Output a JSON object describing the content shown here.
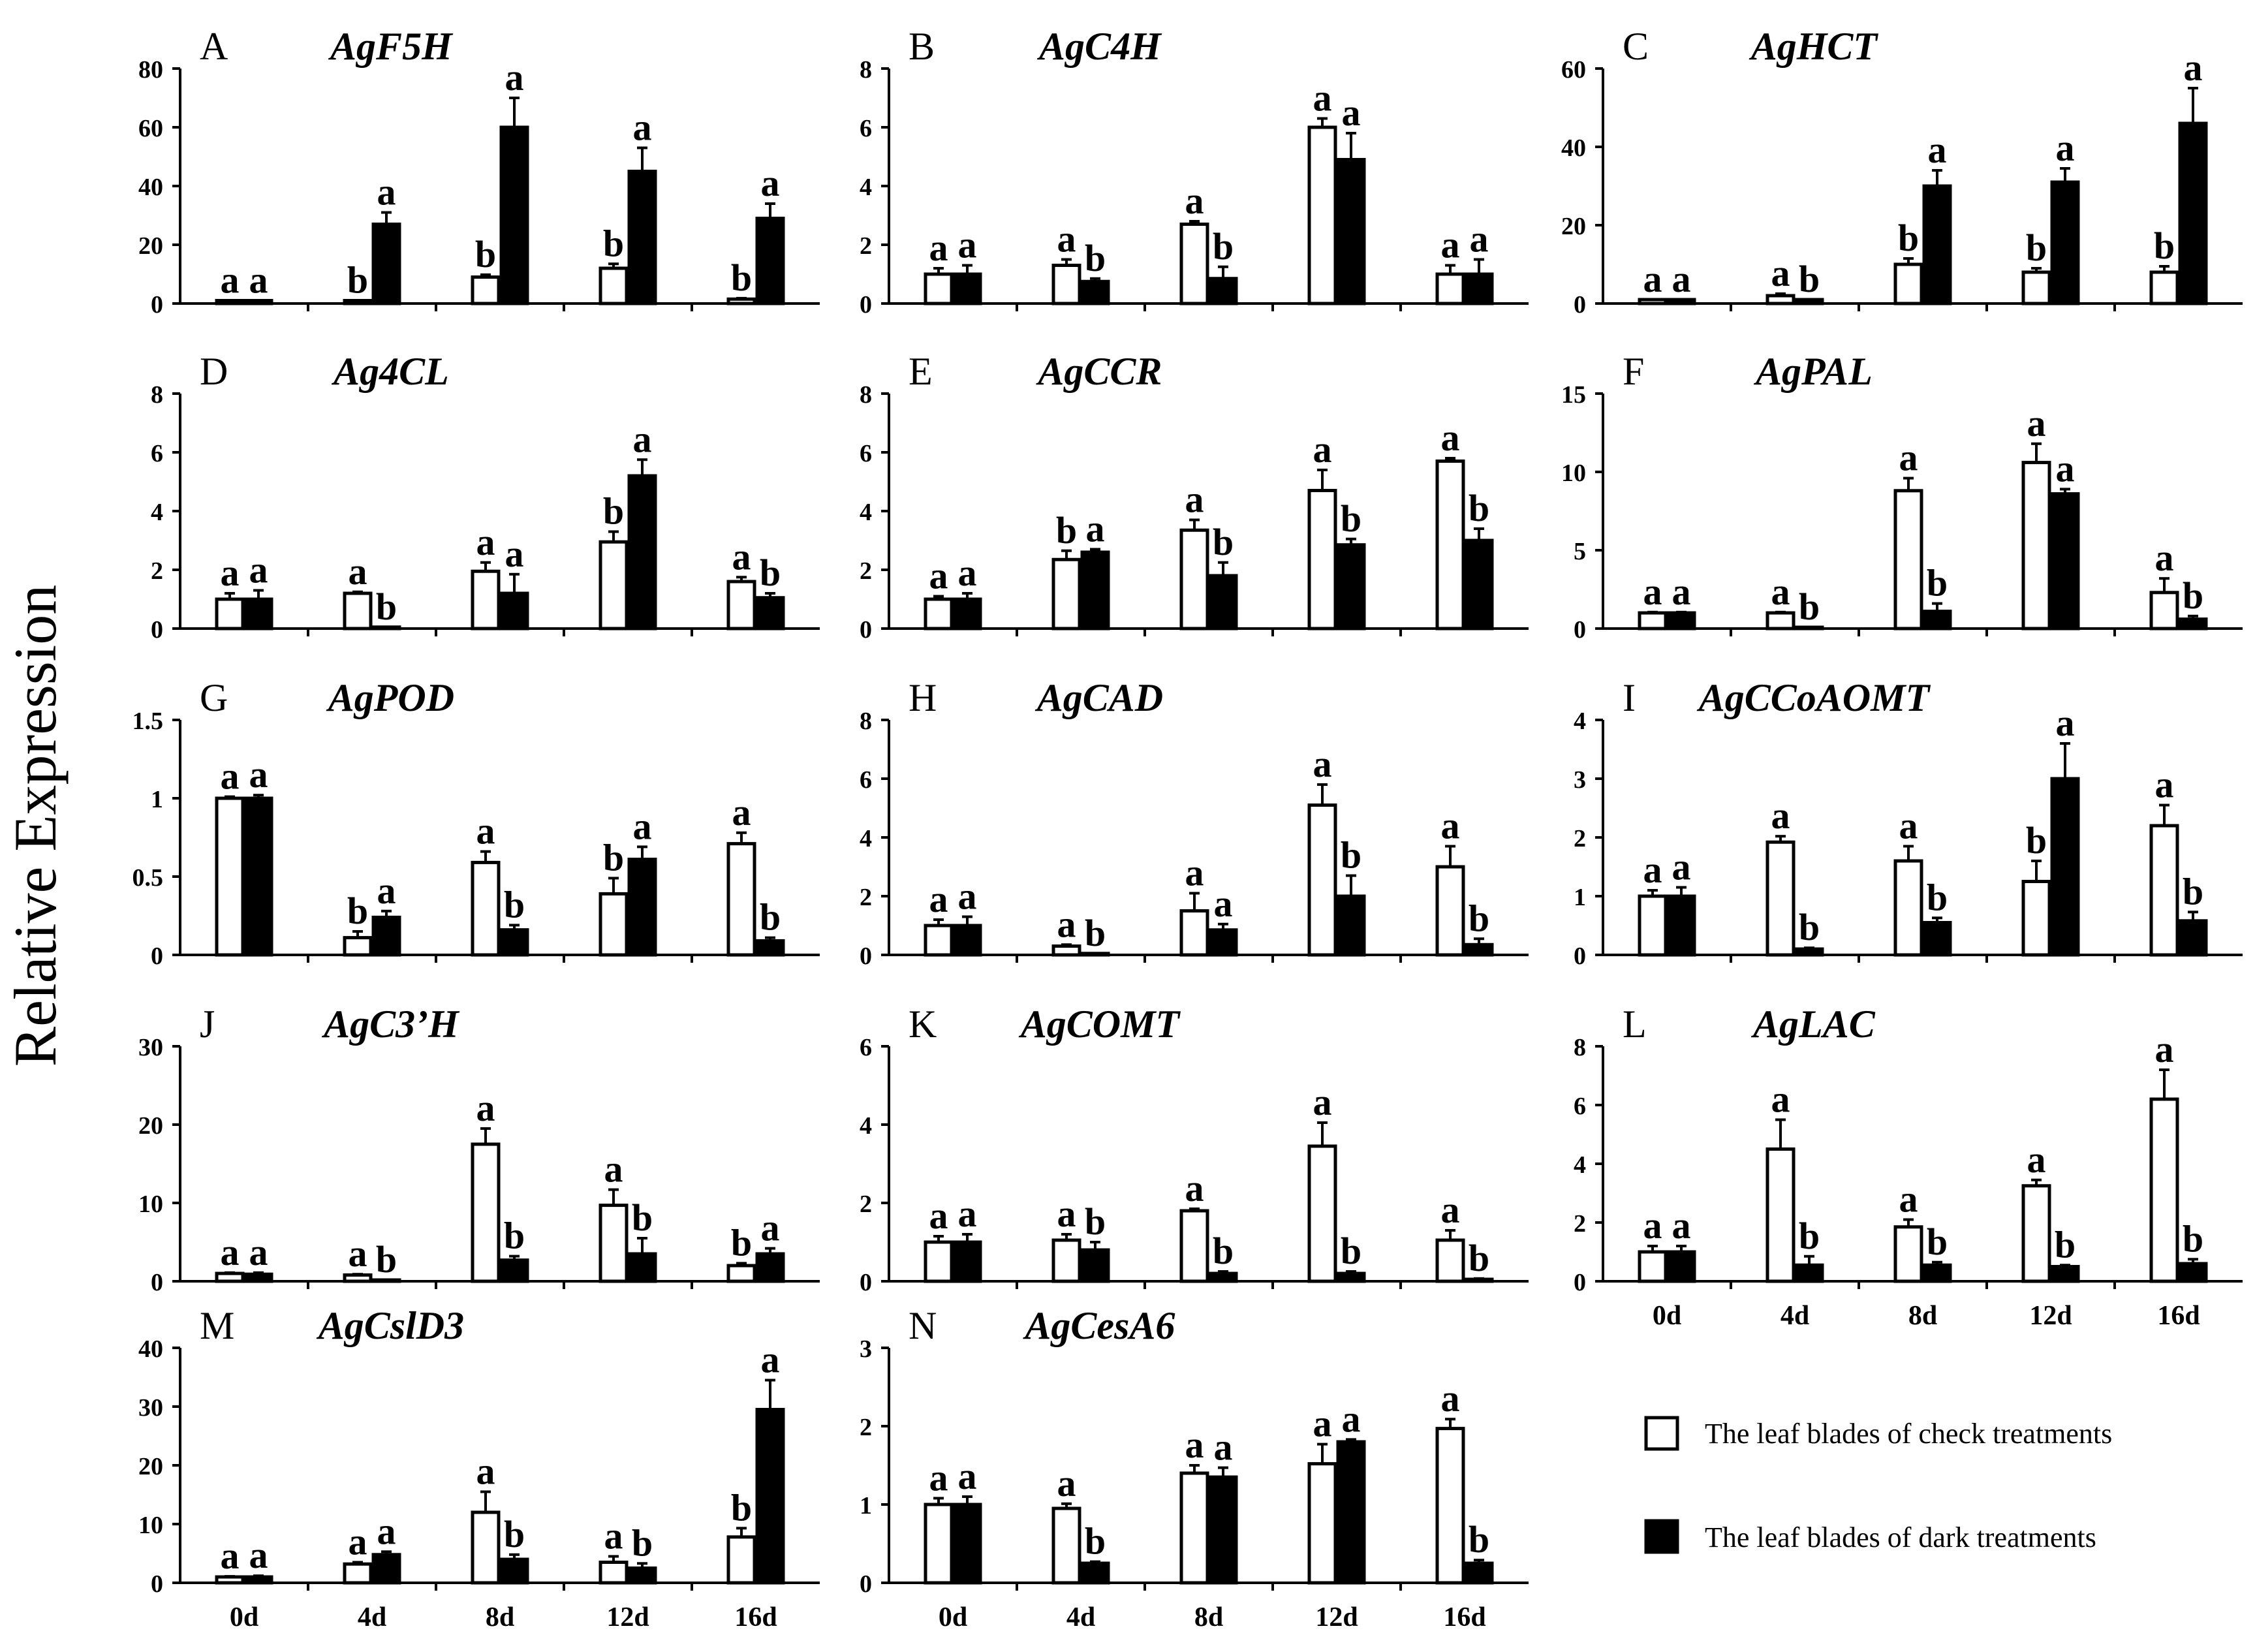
{
  "figure": {
    "ylabel": "Relative Expression",
    "categories": [
      "0d",
      "4d",
      "8d",
      "12d",
      "16d"
    ],
    "legend": {
      "check": "The leaf blades of check treatments",
      "dark": "The leaf blades of dark treatments"
    },
    "colors": {
      "check": "#ffffff",
      "dark": "#000000",
      "stroke": "#000000"
    }
  },
  "chart_data": [
    {
      "type": "bar",
      "panel": "A",
      "title": "AgF5H",
      "ylim": [
        0,
        80
      ],
      "ticks": [
        "0",
        "20",
        "40",
        "60",
        "80"
      ],
      "categories": [
        "0d",
        "4d",
        "8d",
        "12d",
        "16d"
      ],
      "series": [
        {
          "name": "The leaf blades of check treatments",
          "values": [
            1,
            1,
            9,
            12,
            1.5
          ],
          "errors": [
            0,
            0,
            0.8,
            1.5,
            0.3
          ],
          "letters": [
            "a",
            "b",
            "b",
            "b",
            "b"
          ]
        },
        {
          "name": "The leaf blades of dark treatments",
          "values": [
            1,
            27,
            60,
            45,
            29
          ],
          "errors": [
            0,
            4,
            10,
            8,
            5
          ],
          "letters": [
            "a",
            "a",
            "a",
            "a",
            "a"
          ]
        }
      ]
    },
    {
      "type": "bar",
      "panel": "B",
      "title": "AgC4H",
      "ylim": [
        0,
        8
      ],
      "ticks": [
        "0",
        "2",
        "4",
        "6",
        "8"
      ],
      "categories": [
        "0d",
        "4d",
        "8d",
        "12d",
        "16d"
      ],
      "series": [
        {
          "name": "The leaf blades of check treatments",
          "values": [
            1,
            1.3,
            2.7,
            6,
            1
          ],
          "errors": [
            0.2,
            0.2,
            0.1,
            0.3,
            0.3
          ],
          "letters": [
            "a",
            "a",
            "a",
            "a",
            "a"
          ]
        },
        {
          "name": "The leaf blades of dark treatments",
          "values": [
            1,
            0.75,
            0.85,
            4.9,
            1
          ],
          "errors": [
            0.3,
            0.1,
            0.4,
            0.9,
            0.5
          ],
          "letters": [
            "a",
            "b",
            "b",
            "a",
            "a"
          ]
        }
      ]
    },
    {
      "type": "bar",
      "panel": "C",
      "title": "AgHCT",
      "ylim": [
        0,
        60
      ],
      "ticks": [
        "0",
        "20",
        "40",
        "60"
      ],
      "categories": [
        "0d",
        "4d",
        "8d",
        "12d",
        "16d"
      ],
      "series": [
        {
          "name": "The leaf blades of check treatments",
          "values": [
            1,
            2,
            10,
            8,
            8
          ],
          "errors": [
            0,
            0.5,
            1.5,
            1,
            1.5
          ],
          "letters": [
            "a",
            "a",
            "b",
            "b",
            "b"
          ]
        },
        {
          "name": "The leaf blades of dark treatments",
          "values": [
            1,
            1,
            30,
            31,
            46
          ],
          "errors": [
            0,
            0,
            4,
            3.5,
            9
          ],
          "letters": [
            "a",
            "b",
            "a",
            "a",
            "a"
          ]
        }
      ]
    },
    {
      "type": "bar",
      "panel": "D",
      "title": "Ag4CL",
      "ylim": [
        0,
        8
      ],
      "ticks": [
        "0",
        "2",
        "4",
        "6",
        "8"
      ],
      "categories": [
        "0d",
        "4d",
        "8d",
        "12d",
        "16d"
      ],
      "series": [
        {
          "name": "The leaf blades of check treatments",
          "values": [
            1,
            1.2,
            1.95,
            2.95,
            1.6
          ],
          "errors": [
            0.2,
            0.05,
            0.3,
            0.35,
            0.15
          ],
          "letters": [
            "a",
            "a",
            "a",
            "b",
            "a"
          ]
        },
        {
          "name": "The leaf blades of dark treatments",
          "values": [
            1,
            0.05,
            1.2,
            5.2,
            1.05
          ],
          "errors": [
            0.3,
            0,
            0.65,
            0.55,
            0.15
          ],
          "letters": [
            "a",
            "b",
            "a",
            "a",
            "b"
          ]
        }
      ]
    },
    {
      "type": "bar",
      "panel": "E",
      "title": "AgCCR",
      "ylim": [
        0,
        8
      ],
      "ticks": [
        "0",
        "2",
        "4",
        "6",
        "8"
      ],
      "categories": [
        "0d",
        "4d",
        "8d",
        "12d",
        "16d"
      ],
      "series": [
        {
          "name": "The leaf blades of check treatments",
          "values": [
            1,
            2.35,
            3.35,
            4.7,
            5.7
          ],
          "errors": [
            0.1,
            0.3,
            0.35,
            0.7,
            0.1
          ],
          "letters": [
            "a",
            "b",
            "a",
            "a",
            "a"
          ]
        },
        {
          "name": "The leaf blades of dark treatments",
          "values": [
            1,
            2.6,
            1.8,
            2.85,
            3
          ],
          "errors": [
            0.2,
            0.1,
            0.45,
            0.2,
            0.4
          ],
          "letters": [
            "a",
            "a",
            "b",
            "b",
            "b"
          ]
        }
      ]
    },
    {
      "type": "bar",
      "panel": "F",
      "title": "AgPAL",
      "ylim": [
        0,
        15
      ],
      "ticks": [
        "0",
        "5",
        "10",
        "15"
      ],
      "categories": [
        "0d",
        "4d",
        "8d",
        "12d",
        "16d"
      ],
      "series": [
        {
          "name": "The leaf blades of check treatments",
          "values": [
            1,
            1,
            8.8,
            10.6,
            2.3
          ],
          "errors": [
            0.05,
            0.05,
            0.8,
            1.2,
            0.9
          ],
          "letters": [
            "a",
            "a",
            "a",
            "a",
            "a"
          ]
        },
        {
          "name": "The leaf blades of dark treatments",
          "values": [
            1,
            0.05,
            1.1,
            8.6,
            0.6
          ],
          "errors": [
            0.05,
            0,
            0.5,
            0.3,
            0.2
          ],
          "letters": [
            "a",
            "b",
            "b",
            "a",
            "b"
          ]
        }
      ]
    },
    {
      "type": "bar",
      "panel": "G",
      "title": "AgPOD",
      "ylim": [
        0,
        1.5
      ],
      "ticks": [
        "0",
        "0.5",
        "1",
        "1.5"
      ],
      "categories": [
        "0d",
        "4d",
        "8d",
        "12d",
        "16d"
      ],
      "series": [
        {
          "name": "The leaf blades of check treatments",
          "values": [
            1,
            0.11,
            0.59,
            0.39,
            0.71
          ],
          "errors": [
            0.01,
            0.04,
            0.07,
            0.1,
            0.07
          ],
          "letters": [
            "a",
            "b",
            "a",
            "b",
            "a"
          ]
        },
        {
          "name": "The leaf blades of dark treatments",
          "values": [
            1,
            0.24,
            0.16,
            0.61,
            0.09
          ],
          "errors": [
            0.02,
            0.04,
            0.03,
            0.08,
            0.02
          ],
          "letters": [
            "a",
            "a",
            "b",
            "a",
            "b"
          ]
        }
      ]
    },
    {
      "type": "bar",
      "panel": "H",
      "title": "AgCAD",
      "ylim": [
        0,
        8
      ],
      "ticks": [
        "0",
        "2",
        "4",
        "6",
        "8"
      ],
      "categories": [
        "0d",
        "4d",
        "8d",
        "12d",
        "16d"
      ],
      "series": [
        {
          "name": "The leaf blades of check treatments",
          "values": [
            1,
            0.3,
            1.5,
            5.1,
            3
          ],
          "errors": [
            0.2,
            0.05,
            0.6,
            0.7,
            0.7
          ],
          "letters": [
            "a",
            "a",
            "a",
            "a",
            "a"
          ]
        },
        {
          "name": "The leaf blades of dark treatments",
          "values": [
            1,
            0.05,
            0.85,
            2,
            0.35
          ],
          "errors": [
            0.3,
            0,
            0.2,
            0.7,
            0.2
          ],
          "letters": [
            "a",
            "b",
            "a",
            "b",
            "b"
          ]
        }
      ]
    },
    {
      "type": "bar",
      "panel": "I",
      "title": "AgCCoAOMT",
      "ylim": [
        0,
        4
      ],
      "ticks": [
        "0",
        "1",
        "2",
        "3",
        "4"
      ],
      "categories": [
        "0d",
        "4d",
        "8d",
        "12d",
        "16d"
      ],
      "series": [
        {
          "name": "The leaf blades of check treatments",
          "values": [
            1,
            1.92,
            1.6,
            1.25,
            2.2
          ],
          "errors": [
            0.1,
            0.1,
            0.25,
            0.35,
            0.35
          ],
          "letters": [
            "a",
            "a",
            "a",
            "b",
            "a"
          ]
        },
        {
          "name": "The leaf blades of dark treatments",
          "values": [
            1,
            0.1,
            0.55,
            3,
            0.58
          ],
          "errors": [
            0.15,
            0.02,
            0.08,
            0.6,
            0.15
          ],
          "letters": [
            "a",
            "b",
            "b",
            "a",
            "b"
          ]
        }
      ]
    },
    {
      "type": "bar",
      "panel": "J",
      "title": "AgC3’H",
      "ylim": [
        0,
        30
      ],
      "ticks": [
        "0",
        "10",
        "20",
        "30"
      ],
      "categories": [
        "0d",
        "4d",
        "8d",
        "12d",
        "16d"
      ],
      "series": [
        {
          "name": "The leaf blades of check treatments",
          "values": [
            1,
            0.8,
            17.5,
            9.7,
            2
          ],
          "errors": [
            0.1,
            0.1,
            2,
            2,
            0.3
          ],
          "letters": [
            "a",
            "a",
            "a",
            "a",
            "b"
          ]
        },
        {
          "name": "The leaf blades of dark treatments",
          "values": [
            0.9,
            0.1,
            2.7,
            3.5,
            3.5
          ],
          "errors": [
            0.2,
            0,
            0.5,
            2,
            0.7
          ],
          "letters": [
            "a",
            "b",
            "b",
            "b",
            "a"
          ]
        }
      ]
    },
    {
      "type": "bar",
      "panel": "K",
      "title": "AgCOMT",
      "ylim": [
        0,
        6
      ],
      "ticks": [
        "0",
        "2",
        "4",
        "6"
      ],
      "categories": [
        "0d",
        "4d",
        "8d",
        "12d",
        "16d"
      ],
      "series": [
        {
          "name": "The leaf blades of check treatments",
          "values": [
            1,
            1.05,
            1.8,
            3.45,
            1.05
          ],
          "errors": [
            0.15,
            0.15,
            0.05,
            0.6,
            0.25
          ],
          "letters": [
            "a",
            "a",
            "a",
            "a",
            "a"
          ]
        },
        {
          "name": "The leaf blades of dark treatments",
          "values": [
            1,
            0.8,
            0.2,
            0.2,
            0.05
          ],
          "errors": [
            0.2,
            0.2,
            0.05,
            0.05,
            0.02
          ],
          "letters": [
            "a",
            "b",
            "b",
            "b",
            "b"
          ]
        }
      ]
    },
    {
      "type": "bar",
      "panel": "L",
      "title": "AgLAC",
      "ylim": [
        0,
        8
      ],
      "ticks": [
        "0",
        "2",
        "4",
        "6",
        "8"
      ],
      "categories": [
        "0d",
        "4d",
        "8d",
        "12d",
        "16d"
      ],
      "series": [
        {
          "name": "The leaf blades of check treatments",
          "values": [
            1,
            4.5,
            1.85,
            3.25,
            6.2
          ],
          "errors": [
            0.2,
            1,
            0.25,
            0.2,
            1
          ],
          "letters": [
            "a",
            "a",
            "a",
            "a",
            "a"
          ]
        },
        {
          "name": "The leaf blades of dark treatments",
          "values": [
            1,
            0.55,
            0.55,
            0.5,
            0.6
          ],
          "errors": [
            0.2,
            0.3,
            0.1,
            0.05,
            0.15
          ],
          "letters": [
            "a",
            "b",
            "b",
            "b",
            "b"
          ]
        }
      ]
    },
    {
      "type": "bar",
      "panel": "M",
      "title": "AgCslD3",
      "ylim": [
        0,
        40
      ],
      "ticks": [
        "0",
        "10",
        "20",
        "30",
        "40"
      ],
      "categories": [
        "0d",
        "4d",
        "8d",
        "12d",
        "16d"
      ],
      "series": [
        {
          "name": "The leaf blades of check treatments",
          "values": [
            1,
            3.2,
            12,
            3.5,
            7.8
          ],
          "errors": [
            0.1,
            0.3,
            3.5,
            1,
            1.5
          ],
          "letters": [
            "a",
            "a",
            "a",
            "a",
            "b"
          ]
        },
        {
          "name": "The leaf blades of dark treatments",
          "values": [
            1,
            4.8,
            4,
            2.5,
            29.5
          ],
          "errors": [
            0.2,
            0.5,
            0.8,
            0.8,
            5
          ],
          "letters": [
            "a",
            "a",
            "b",
            "b",
            "a"
          ]
        }
      ]
    },
    {
      "type": "bar",
      "panel": "N",
      "title": "AgCesA6",
      "ylim": [
        0,
        3
      ],
      "ticks": [
        "0",
        "1",
        "2",
        "3"
      ],
      "categories": [
        "0d",
        "4d",
        "8d",
        "12d",
        "16d"
      ],
      "series": [
        {
          "name": "The leaf blades of check treatments",
          "values": [
            1,
            0.95,
            1.4,
            1.52,
            1.97
          ],
          "errors": [
            0.08,
            0.06,
            0.1,
            0.25,
            0.12
          ],
          "letters": [
            "a",
            "a",
            "a",
            "a",
            "a"
          ]
        },
        {
          "name": "The leaf blades of dark treatments",
          "values": [
            1,
            0.25,
            1.35,
            1.8,
            0.25
          ],
          "errors": [
            0.1,
            0.02,
            0.12,
            0.03,
            0.04
          ],
          "letters": [
            "a",
            "b",
            "a",
            "a",
            "b"
          ]
        }
      ]
    }
  ]
}
